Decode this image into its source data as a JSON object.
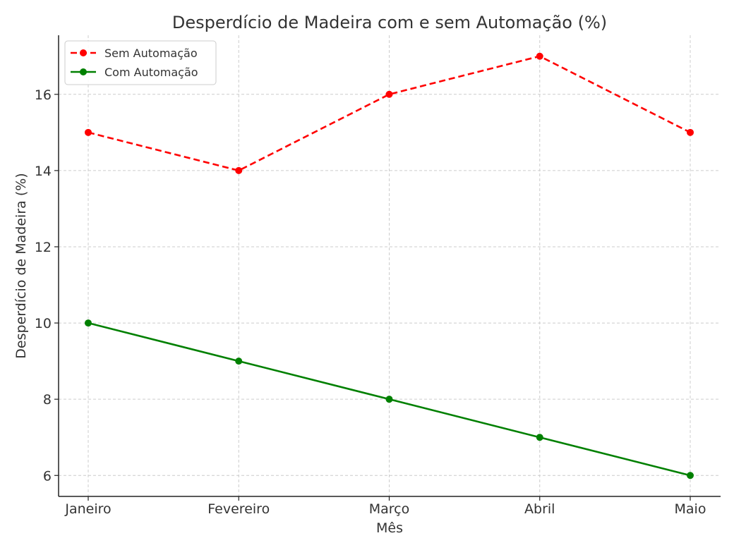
{
  "chart_data": {
    "type": "line",
    "title": "Desperdício de Madeira com e sem Automação (%)",
    "xlabel": "Mês",
    "ylabel": "Desperdício de Madeira (%)",
    "categories": [
      "Janeiro",
      "Fevereiro",
      "Março",
      "Abril",
      "Maio"
    ],
    "ylim": [
      5.45,
      17.55
    ],
    "yticks": [
      6,
      8,
      10,
      12,
      14,
      16
    ],
    "grid": true,
    "legend_position": "top-left",
    "series": [
      {
        "name": "Sem Automação",
        "values": [
          15,
          14,
          16,
          17,
          15
        ],
        "color": "#ff0000",
        "line_style": "dashed",
        "marker": "circle"
      },
      {
        "name": "Com Automação",
        "values": [
          10,
          9,
          8,
          7,
          6
        ],
        "color": "#008000",
        "line_style": "solid",
        "marker": "circle"
      }
    ]
  }
}
